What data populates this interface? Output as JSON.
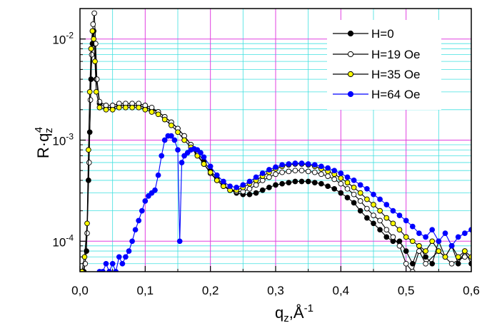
{
  "chart_data": {
    "type": "scatter",
    "title": "",
    "xlabel": {
      "base": "q",
      "sub": "z",
      "sep": ",",
      "unit": "Å",
      "sup": "-1"
    },
    "ylabel": {
      "base": "R·q",
      "sub": "z",
      "sup": "4"
    },
    "x_scale": "linear",
    "y_scale": "log",
    "xlim": [
      0.0,
      0.6
    ],
    "ylim": [
      5e-05,
      0.02
    ],
    "x_ticks": [
      {
        "value": 0.0,
        "label": "0,0"
      },
      {
        "value": 0.1,
        "label": "0,1"
      },
      {
        "value": 0.2,
        "label": "0,2"
      },
      {
        "value": 0.3,
        "label": "0,3"
      },
      {
        "value": 0.4,
        "label": "0,4"
      },
      {
        "value": 0.5,
        "label": "0,5"
      },
      {
        "value": 0.6,
        "label": "0,6"
      }
    ],
    "y_ticks": [
      {
        "value": 0.0001,
        "base": "10",
        "exp": "-4"
      },
      {
        "value": 0.001,
        "base": "10",
        "exp": "-3"
      },
      {
        "value": 0.01,
        "base": "10",
        "exp": "-2"
      }
    ],
    "grid": true,
    "legend_position": "top-right",
    "colors": {
      "grid_major": "#e040e0",
      "grid_minor": "#40e0e0"
    },
    "series": [
      {
        "name": "H=0",
        "line_color": "#000000",
        "marker_fill": "#000000",
        "marker_edge": "#000000",
        "points": [
          [
            0.002,
            5e-05
          ],
          [
            0.006,
            5e-05
          ],
          [
            0.01,
            8e-05
          ],
          [
            0.013,
            0.0004
          ],
          [
            0.015,
            0.0012
          ],
          [
            0.017,
            0.004
          ],
          [
            0.019,
            0.009
          ],
          [
            0.021,
            0.012
          ],
          [
            0.023,
            0.009
          ],
          [
            0.025,
            0.004
          ],
          [
            0.03,
            0.0023
          ],
          [
            0.04,
            0.0021
          ],
          [
            0.05,
            0.0021
          ],
          [
            0.06,
            0.0022
          ],
          [
            0.07,
            0.0022
          ],
          [
            0.08,
            0.0022
          ],
          [
            0.09,
            0.0022
          ],
          [
            0.1,
            0.0021
          ],
          [
            0.11,
            0.002
          ],
          [
            0.12,
            0.0019
          ],
          [
            0.13,
            0.0017
          ],
          [
            0.14,
            0.0015
          ],
          [
            0.15,
            0.0013
          ],
          [
            0.16,
            0.0011
          ],
          [
            0.17,
            0.0009
          ],
          [
            0.18,
            0.00075
          ],
          [
            0.19,
            0.00062
          ],
          [
            0.2,
            0.0005
          ],
          [
            0.21,
            0.00042
          ],
          [
            0.22,
            0.00036
          ],
          [
            0.23,
            0.00032
          ],
          [
            0.24,
            0.0003
          ],
          [
            0.25,
            0.00029
          ],
          [
            0.26,
            0.00029
          ],
          [
            0.27,
            0.0003
          ],
          [
            0.28,
            0.00032
          ],
          [
            0.29,
            0.00034
          ],
          [
            0.3,
            0.00036
          ],
          [
            0.31,
            0.00037
          ],
          [
            0.32,
            0.00038
          ],
          [
            0.33,
            0.00039
          ],
          [
            0.34,
            0.00039
          ],
          [
            0.35,
            0.00039
          ],
          [
            0.36,
            0.00038
          ],
          [
            0.37,
            0.00037
          ],
          [
            0.38,
            0.00035
          ],
          [
            0.39,
            0.00033
          ],
          [
            0.4,
            0.0003
          ],
          [
            0.41,
            0.00027
          ],
          [
            0.42,
            0.00024
          ],
          [
            0.43,
            0.0002
          ],
          [
            0.44,
            0.00017
          ],
          [
            0.45,
            0.00015
          ],
          [
            0.46,
            0.00013
          ],
          [
            0.47,
            0.00011
          ],
          [
            0.48,
            0.0001
          ],
          [
            0.49,
            0.0001
          ],
          [
            0.5,
            8e-05
          ],
          [
            0.51,
            6e-05
          ],
          [
            0.52,
            9e-05
          ],
          [
            0.53,
            7e-05
          ],
          [
            0.54,
            6e-05
          ],
          [
            0.55,
            0.0001
          ],
          [
            0.56,
            7e-05
          ],
          [
            0.57,
            9e-05
          ],
          [
            0.58,
            6e-05
          ],
          [
            0.59,
            8e-05
          ],
          [
            0.6,
            6e-05
          ]
        ]
      },
      {
        "name": "H=19 Oe",
        "line_color": "#000000",
        "marker_fill": "#ffffff",
        "marker_edge": "#000000",
        "points": [
          [
            0.004,
            5e-05
          ],
          [
            0.008,
            6e-05
          ],
          [
            0.011,
            0.00012
          ],
          [
            0.014,
            0.0006
          ],
          [
            0.016,
            0.0025
          ],
          [
            0.018,
            0.007
          ],
          [
            0.02,
            0.014
          ],
          [
            0.022,
            0.018
          ],
          [
            0.024,
            0.009
          ],
          [
            0.026,
            0.004
          ],
          [
            0.03,
            0.0024
          ],
          [
            0.04,
            0.0022
          ],
          [
            0.05,
            0.0022
          ],
          [
            0.06,
            0.0023
          ],
          [
            0.07,
            0.0023
          ],
          [
            0.08,
            0.0023
          ],
          [
            0.09,
            0.0023
          ],
          [
            0.1,
            0.0022
          ],
          [
            0.11,
            0.0021
          ],
          [
            0.12,
            0.0019
          ],
          [
            0.13,
            0.0017
          ],
          [
            0.14,
            0.0015
          ],
          [
            0.15,
            0.0013
          ],
          [
            0.16,
            0.0011
          ],
          [
            0.17,
            0.0009
          ],
          [
            0.18,
            0.00072
          ],
          [
            0.19,
            0.00058
          ],
          [
            0.2,
            0.00047
          ],
          [
            0.21,
            0.0004
          ],
          [
            0.22,
            0.00035
          ],
          [
            0.23,
            0.00032
          ],
          [
            0.24,
            0.00031
          ],
          [
            0.25,
            0.00031
          ],
          [
            0.26,
            0.00033
          ],
          [
            0.27,
            0.00036
          ],
          [
            0.28,
            0.0004
          ],
          [
            0.29,
            0.00043
          ],
          [
            0.3,
            0.00046
          ],
          [
            0.31,
            0.00048
          ],
          [
            0.32,
            0.00049
          ],
          [
            0.33,
            0.0005
          ],
          [
            0.34,
            0.0005
          ],
          [
            0.35,
            0.00049
          ],
          [
            0.36,
            0.00048
          ],
          [
            0.37,
            0.00046
          ],
          [
            0.38,
            0.00044
          ],
          [
            0.39,
            0.00041
          ],
          [
            0.4,
            0.00037
          ],
          [
            0.41,
            0.00033
          ],
          [
            0.42,
            0.00029
          ],
          [
            0.43,
            0.00025
          ],
          [
            0.44,
            0.00021
          ],
          [
            0.45,
            0.00018
          ],
          [
            0.46,
            0.00016
          ],
          [
            0.47,
            0.00013
          ],
          [
            0.48,
            0.00011
          ],
          [
            0.49,
            9e-05
          ],
          [
            0.5,
            6e-05
          ],
          [
            0.51,
            5e-05
          ],
          [
            0.52,
            8e-05
          ],
          [
            0.53,
            6e-05
          ],
          [
            0.55,
            8e-05
          ],
          [
            0.57,
            6e-05
          ],
          [
            0.59,
            7e-05
          ]
        ]
      },
      {
        "name": "H=35 Oe",
        "line_color": "#000000",
        "marker_fill": "#ffff00",
        "marker_edge": "#000000",
        "points": [
          [
            0.003,
            5e-05
          ],
          [
            0.007,
            7e-05
          ],
          [
            0.011,
            0.00015
          ],
          [
            0.013,
            0.0008
          ],
          [
            0.015,
            0.003
          ],
          [
            0.017,
            0.008
          ],
          [
            0.019,
            0.012
          ],
          [
            0.021,
            0.01
          ],
          [
            0.023,
            0.006
          ],
          [
            0.025,
            0.003
          ],
          [
            0.03,
            0.0021
          ],
          [
            0.04,
            0.002
          ],
          [
            0.05,
            0.002
          ],
          [
            0.06,
            0.0021
          ],
          [
            0.07,
            0.0021
          ],
          [
            0.08,
            0.0021
          ],
          [
            0.09,
            0.0021
          ],
          [
            0.1,
            0.002
          ],
          [
            0.11,
            0.0019
          ],
          [
            0.12,
            0.0018
          ],
          [
            0.13,
            0.0016
          ],
          [
            0.14,
            0.0014
          ],
          [
            0.15,
            0.0012
          ],
          [
            0.16,
            0.001
          ],
          [
            0.17,
            0.00085
          ],
          [
            0.18,
            0.0007
          ],
          [
            0.19,
            0.00058
          ],
          [
            0.2,
            0.00048
          ],
          [
            0.21,
            0.0004
          ],
          [
            0.22,
            0.00035
          ],
          [
            0.23,
            0.00032
          ],
          [
            0.24,
            0.00032
          ],
          [
            0.25,
            0.00034
          ],
          [
            0.26,
            0.00037
          ],
          [
            0.27,
            0.0004
          ],
          [
            0.28,
            0.00044
          ],
          [
            0.29,
            0.00048
          ],
          [
            0.3,
            0.00052
          ],
          [
            0.31,
            0.00055
          ],
          [
            0.32,
            0.00057
          ],
          [
            0.33,
            0.00058
          ],
          [
            0.34,
            0.00058
          ],
          [
            0.35,
            0.00057
          ],
          [
            0.36,
            0.00055
          ],
          [
            0.37,
            0.00052
          ],
          [
            0.38,
            0.00049
          ],
          [
            0.39,
            0.00046
          ],
          [
            0.4,
            0.00042
          ],
          [
            0.41,
            0.00038
          ],
          [
            0.42,
            0.00034
          ],
          [
            0.43,
            0.0003
          ],
          [
            0.44,
            0.00026
          ],
          [
            0.45,
            0.00023
          ],
          [
            0.46,
            0.0002
          ],
          [
            0.47,
            0.00017
          ],
          [
            0.48,
            0.00015
          ],
          [
            0.49,
            0.00013
          ],
          [
            0.5,
            0.00011
          ],
          [
            0.51,
            0.0001
          ],
          [
            0.52,
            9e-05
          ],
          [
            0.53,
            8e-05
          ],
          [
            0.54,
            0.0001
          ],
          [
            0.55,
            8e-05
          ],
          [
            0.56,
            7e-05
          ],
          [
            0.57,
            9e-05
          ],
          [
            0.58,
            7e-05
          ],
          [
            0.59,
            8e-05
          ],
          [
            0.6,
            7e-05
          ]
        ]
      },
      {
        "name": "H=64 Oe",
        "line_color": "#0000ff",
        "marker_fill": "#0000ff",
        "marker_edge": "#0000ff",
        "points": [
          [
            0.03,
            5e-05
          ],
          [
            0.035,
            5e-05
          ],
          [
            0.04,
            6e-05
          ],
          [
            0.045,
            5e-05
          ],
          [
            0.05,
            6e-05
          ],
          [
            0.055,
            5e-05
          ],
          [
            0.06,
            7e-05
          ],
          [
            0.065,
            6e-05
          ],
          [
            0.07,
            7e-05
          ],
          [
            0.075,
            8e-05
          ],
          [
            0.08,
            0.0001
          ],
          [
            0.085,
            0.00013
          ],
          [
            0.09,
            0.00016
          ],
          [
            0.095,
            0.0002
          ],
          [
            0.1,
            0.00025
          ],
          [
            0.105,
            0.00028
          ],
          [
            0.11,
            0.0003
          ],
          [
            0.115,
            0.00032
          ],
          [
            0.12,
            0.00045
          ],
          [
            0.125,
            0.0007
          ],
          [
            0.13,
            0.001
          ],
          [
            0.135,
            0.0011
          ],
          [
            0.14,
            0.0011
          ],
          [
            0.145,
            0.001
          ],
          [
            0.15,
            0.0008
          ],
          [
            0.153,
            0.0001
          ],
          [
            0.156,
            0.0006
          ],
          [
            0.16,
            0.0007
          ],
          [
            0.165,
            0.00075
          ],
          [
            0.17,
            0.0008
          ],
          [
            0.175,
            0.00082
          ],
          [
            0.18,
            0.0008
          ],
          [
            0.185,
            0.00075
          ],
          [
            0.19,
            0.00068
          ],
          [
            0.2,
            0.00055
          ],
          [
            0.21,
            0.00045
          ],
          [
            0.22,
            0.00039
          ],
          [
            0.23,
            0.00035
          ],
          [
            0.24,
            0.00034
          ],
          [
            0.25,
            0.00036
          ],
          [
            0.26,
            0.00039
          ],
          [
            0.27,
            0.00043
          ],
          [
            0.28,
            0.00047
          ],
          [
            0.29,
            0.00051
          ],
          [
            0.3,
            0.00054
          ],
          [
            0.31,
            0.00057
          ],
          [
            0.32,
            0.00058
          ],
          [
            0.33,
            0.00059
          ],
          [
            0.34,
            0.00059
          ],
          [
            0.35,
            0.00058
          ],
          [
            0.36,
            0.00057
          ],
          [
            0.37,
            0.00055
          ],
          [
            0.38,
            0.00053
          ],
          [
            0.39,
            0.0005
          ],
          [
            0.4,
            0.00047
          ],
          [
            0.41,
            0.00043
          ],
          [
            0.42,
            0.0004
          ],
          [
            0.43,
            0.00036
          ],
          [
            0.44,
            0.00033
          ],
          [
            0.45,
            0.00029
          ],
          [
            0.46,
            0.00026
          ],
          [
            0.47,
            0.00023
          ],
          [
            0.48,
            0.0002
          ],
          [
            0.49,
            0.00018
          ],
          [
            0.5,
            0.00016
          ],
          [
            0.51,
            0.00014
          ],
          [
            0.52,
            0.00012
          ],
          [
            0.53,
            0.00011
          ],
          [
            0.54,
            0.00013
          ],
          [
            0.55,
            0.0001
          ],
          [
            0.56,
            0.00012
          ],
          [
            0.57,
            9e-05
          ],
          [
            0.58,
            0.00011
          ],
          [
            0.59,
            0.00012
          ],
          [
            0.6,
            0.00013
          ]
        ]
      }
    ]
  }
}
